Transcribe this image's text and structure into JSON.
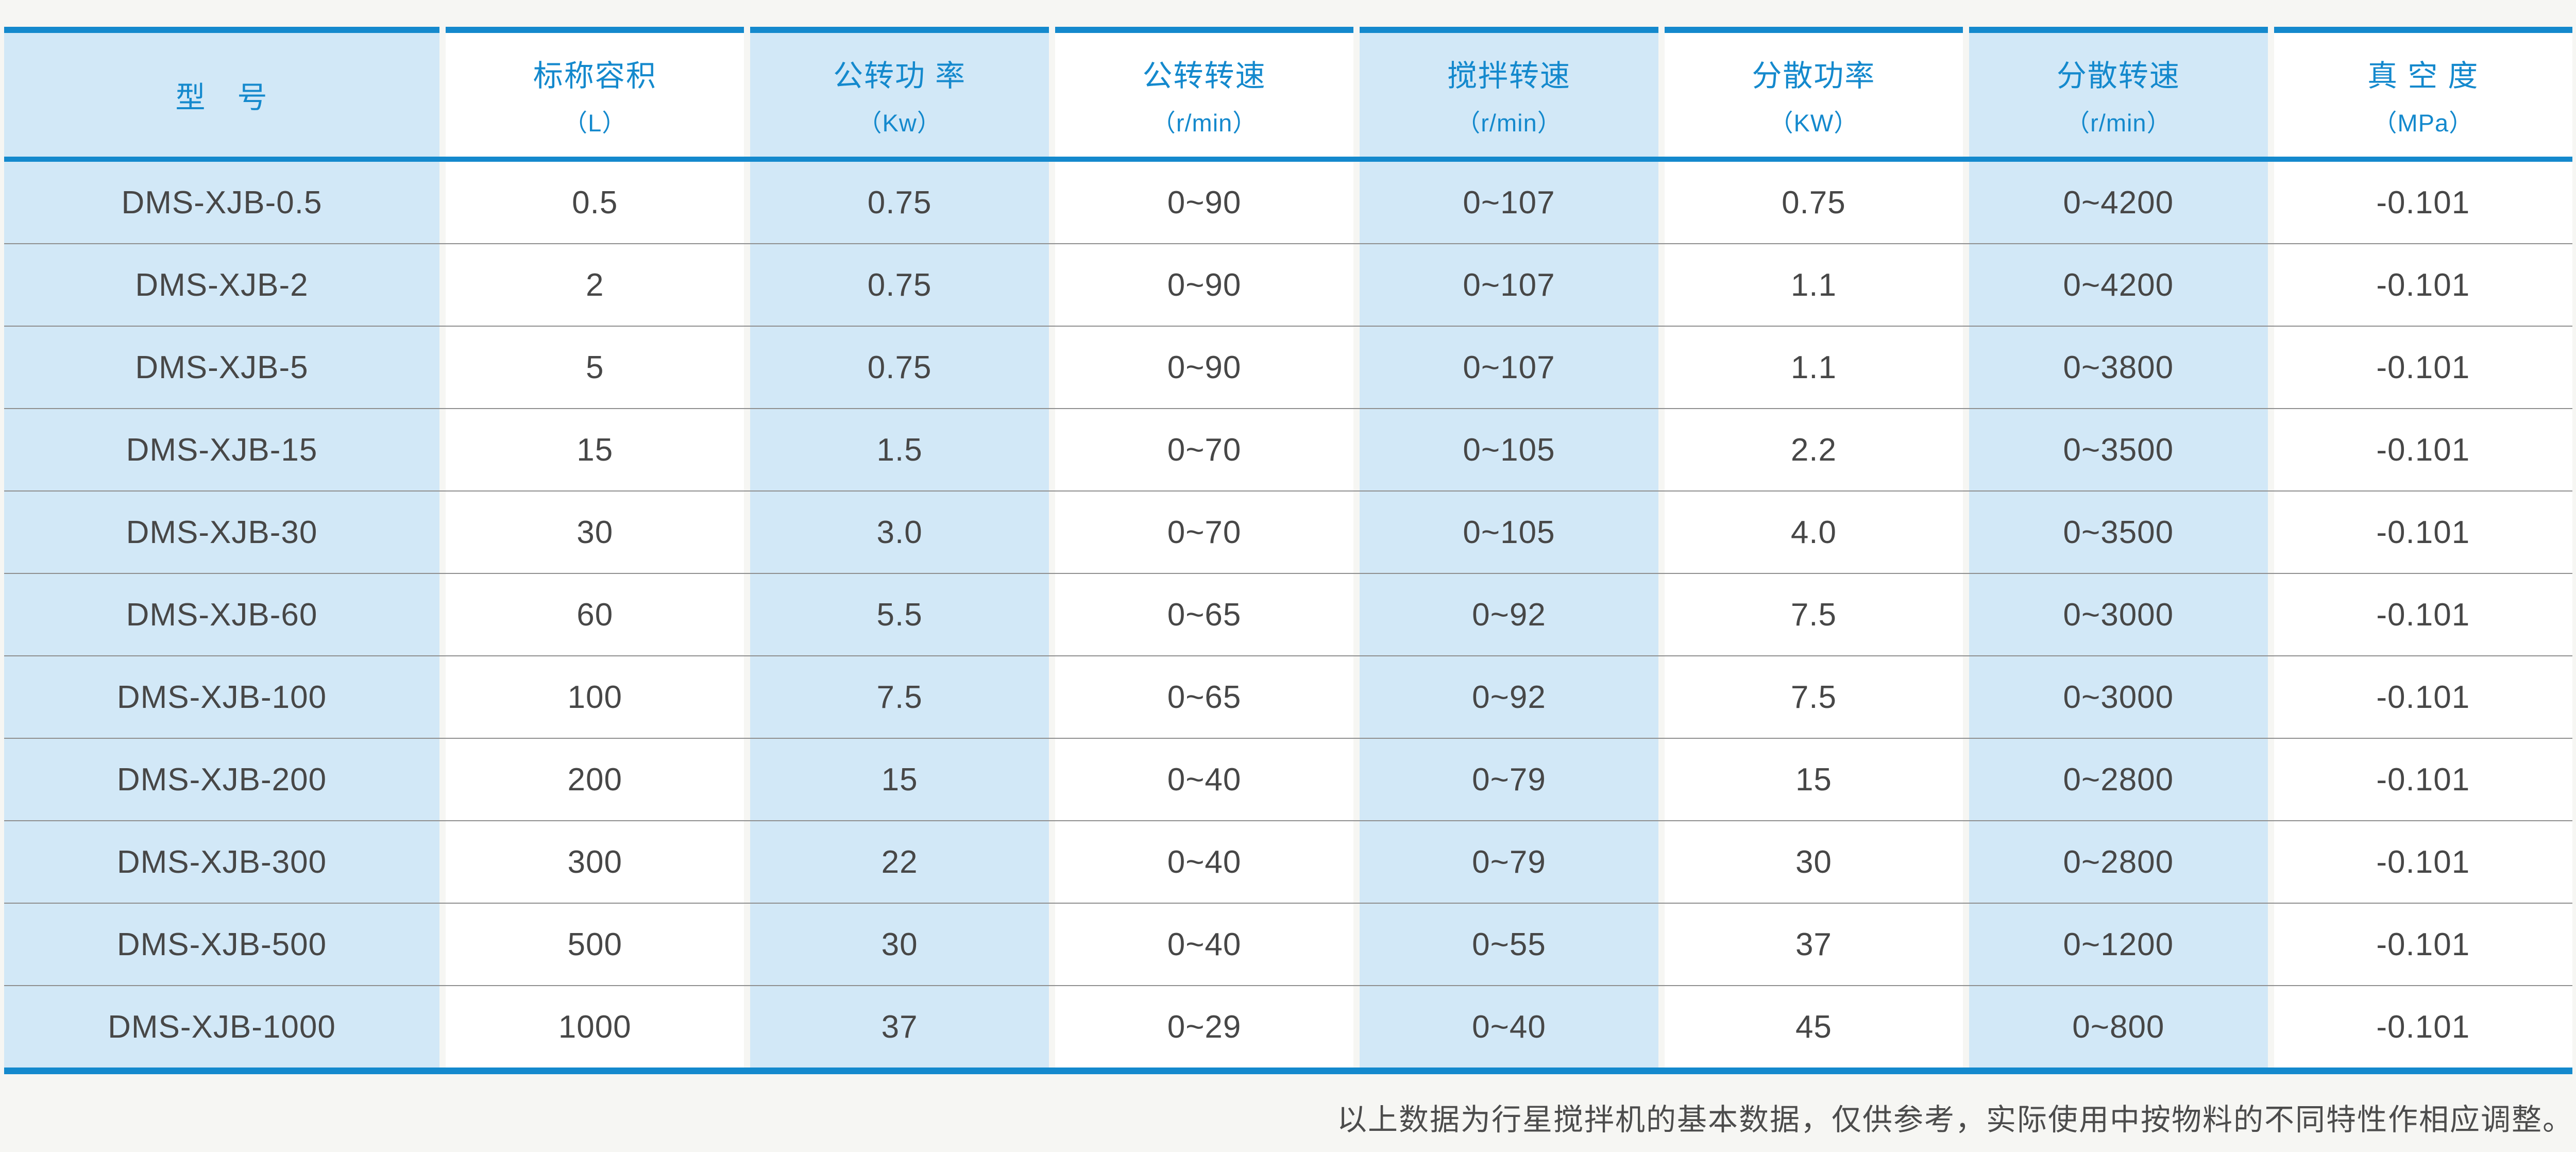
{
  "colors": {
    "accent_blue": "#1489cd",
    "column_stripe_blue": "#d2e8f7",
    "page_background": "#f6f6f3",
    "body_text": "#474747",
    "row_separator": "#8f8f8f"
  },
  "table": {
    "columns": [
      {
        "title": "型　号",
        "sub": ""
      },
      {
        "title": "标称容积",
        "sub": "（L）"
      },
      {
        "title": "公转功 率",
        "sub": "（Kw）"
      },
      {
        "title": "公转转速",
        "sub": "（r/min）"
      },
      {
        "title": "搅拌转速",
        "sub": "（r/min）"
      },
      {
        "title": "分散功率",
        "sub": "（KW）"
      },
      {
        "title": "分散转速",
        "sub": "（r/min）"
      },
      {
        "title": "真 空 度",
        "sub": "（MPa）"
      }
    ],
    "rows": [
      [
        "DMS-XJB-0.5",
        "0.5",
        "0.75",
        "0~90",
        "0~107",
        "0.75",
        "0~4200",
        "-0.101"
      ],
      [
        "DMS-XJB-2",
        "2",
        "0.75",
        "0~90",
        "0~107",
        "1.1",
        "0~4200",
        "-0.101"
      ],
      [
        "DMS-XJB-5",
        "5",
        "0.75",
        "0~90",
        "0~107",
        "1.1",
        "0~3800",
        "-0.101"
      ],
      [
        "DMS-XJB-15",
        "15",
        "1.5",
        "0~70",
        "0~105",
        "2.2",
        "0~3500",
        "-0.101"
      ],
      [
        "DMS-XJB-30",
        "30",
        "3.0",
        "0~70",
        "0~105",
        "4.0",
        "0~3500",
        "-0.101"
      ],
      [
        "DMS-XJB-60",
        "60",
        "5.5",
        "0~65",
        "0~92",
        "7.5",
        "0~3000",
        "-0.101"
      ],
      [
        "DMS-XJB-100",
        "100",
        "7.5",
        "0~65",
        "0~92",
        "7.5",
        "0~3000",
        "-0.101"
      ],
      [
        "DMS-XJB-200",
        "200",
        "15",
        "0~40",
        "0~79",
        "15",
        "0~2800",
        "-0.101"
      ],
      [
        "DMS-XJB-300",
        "300",
        "22",
        "0~40",
        "0~79",
        "30",
        "0~2800",
        "-0.101"
      ],
      [
        "DMS-XJB-500",
        "500",
        "30",
        "0~40",
        "0~55",
        "37",
        "0~1200",
        "-0.101"
      ],
      [
        "DMS-XJB-1000",
        "1000",
        "37",
        "0~29",
        "0~40",
        "45",
        "0~800",
        "-0.101"
      ]
    ]
  },
  "footer": {
    "note": "以上数据为行星搅拌机的基本数据，仅供参考，实际使用中按物料的不同特性作相应调整。"
  }
}
